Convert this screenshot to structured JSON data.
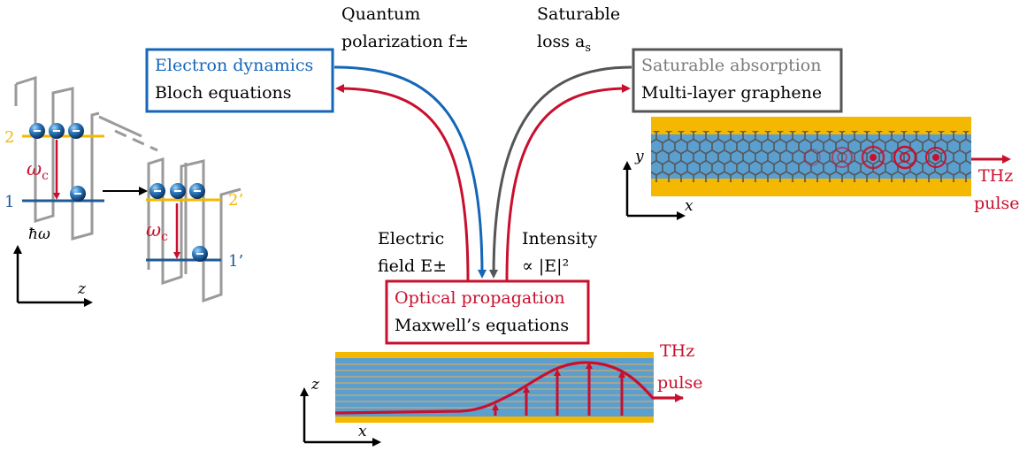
{
  "colors": {
    "red": "#c8102e",
    "blue": "#1466b8",
    "gray": "#555555",
    "lightgray": "#9a9a9a",
    "gold": "#f5b800",
    "waveguide": "#5b9fcf",
    "black": "#000000"
  },
  "boxes": {
    "electron": {
      "title": "Electron dynamics",
      "subtitle": "Bloch equations"
    },
    "absorption": {
      "title": "Saturable absorption",
      "subtitle": "Multi-layer graphene"
    },
    "optical": {
      "title": "Optical propagation",
      "subtitle": "Maxwell’s equations"
    }
  },
  "arrow_labels": {
    "quantum_line1": "Quantum",
    "quantum_line2": "polarization f±",
    "saturable_line1": "Saturable",
    "saturable_line2": "loss a",
    "saturable_sub": "s",
    "electric_line1": "Electric",
    "electric_line2": "field E±",
    "intensity_line1": "Intensity",
    "intensity_line2": "∝ |E|²"
  },
  "levels": {
    "level2": "2",
    "level1": "1",
    "level2p": "2’",
    "level1p": "1’",
    "omega_c": "ω",
    "omega_sub": "c",
    "hbar_omega": "ħω"
  },
  "axes": {
    "z": "z",
    "x": "x",
    "y": "y"
  },
  "thz": {
    "line1": "THz",
    "line2": "pulse"
  }
}
